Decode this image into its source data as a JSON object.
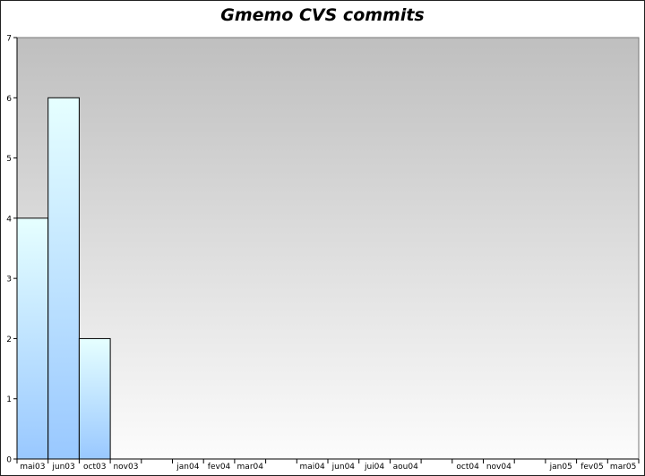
{
  "chart_data": {
    "type": "bar",
    "title": "Gmemo CVS commits",
    "xlabel": "",
    "ylabel": "",
    "ylim": [
      0,
      7
    ],
    "yticks": [
      0,
      1,
      2,
      3,
      4,
      5,
      6,
      7
    ],
    "grid": false,
    "categories": [
      "mai03",
      "jun03",
      "oct03",
      "nov03",
      "",
      "jan04",
      "fev04",
      "mar04",
      "",
      "mai04",
      "jun04",
      "jui04",
      "aou04",
      "",
      "oct04",
      "nov04",
      "",
      "jan05",
      "fev05",
      "mar05"
    ],
    "values": [
      4,
      6,
      2,
      0,
      0,
      0,
      0,
      0,
      0,
      0,
      0,
      0,
      0,
      0,
      0,
      0,
      0,
      0,
      0,
      0
    ],
    "colors": {
      "bar_top": "#e6ffff",
      "bar_bottom": "#99c8ff",
      "plot_top": "#bfbfbf",
      "plot_bottom": "#fcfcfc",
      "axis": "#000000"
    }
  }
}
